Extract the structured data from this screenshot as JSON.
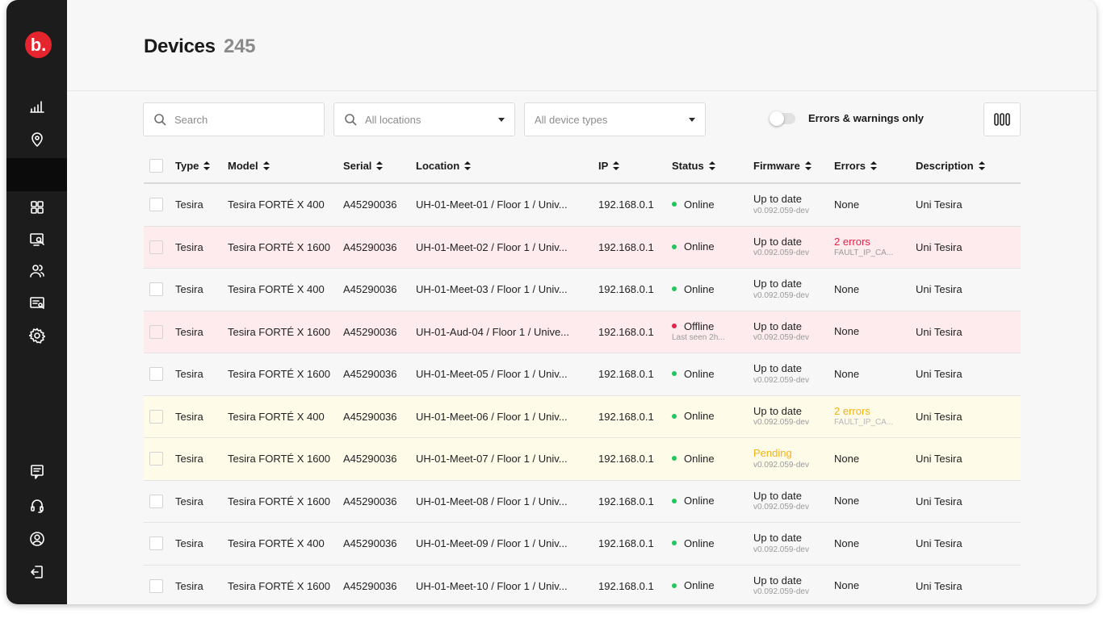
{
  "brand": {
    "logo_text": "b.",
    "accent": "#e5252d"
  },
  "sidebar": {
    "top_icons": [
      "analytics-icon",
      "location-pin-icon"
    ],
    "middle_icons": [
      "grid-icon",
      "monitor-search-icon",
      "users-icon",
      "ticket-icon",
      "settings-icon"
    ],
    "bottom_icons": [
      "feedback-icon",
      "support-headset-icon",
      "profile-icon",
      "logout-icon"
    ]
  },
  "header": {
    "title": "Devices",
    "count": "245"
  },
  "filters": {
    "search_placeholder": "Search",
    "locations_value": "All locations",
    "device_types_value": "All device types",
    "errors_toggle_label": "Errors & warnings only"
  },
  "table": {
    "columns": [
      "Type",
      "Model",
      "Serial",
      "Location",
      "IP",
      "Status",
      "Firmware",
      "Errors",
      "Description"
    ],
    "rows": [
      {
        "type": "Tesira",
        "model": "Tesira FORTÉ X 400",
        "serial": "A45290036",
        "location": "UH-01-Meet-01 / Floor 1 / Univ...",
        "ip": "192.168.0.1",
        "status": "Online",
        "status_sub": "",
        "firmware": "Up to date",
        "firmware_version": "v0.092.059-dev",
        "errors": "None",
        "errors_sub": "",
        "description": "Uni Tesira",
        "highlight": "none"
      },
      {
        "type": "Tesira",
        "model": "Tesira FORTÉ X 1600",
        "serial": "A45290036",
        "location": "UH-01-Meet-02 / Floor 1 / Univ...",
        "ip": "192.168.0.1",
        "status": "Online",
        "status_sub": "",
        "firmware": "Up to date",
        "firmware_version": "v0.092.059-dev",
        "errors": "2 errors",
        "errors_sub": "FAULT_IP_CA...",
        "description": "Uni Tesira",
        "highlight": "error"
      },
      {
        "type": "Tesira",
        "model": "Tesira FORTÉ X 400",
        "serial": "A45290036",
        "location": "UH-01-Meet-03 / Floor 1 / Univ...",
        "ip": "192.168.0.1",
        "status": "Online",
        "status_sub": "",
        "firmware": "Up to date",
        "firmware_version": "v0.092.059-dev",
        "errors": "None",
        "errors_sub": "",
        "description": "Uni Tesira",
        "highlight": "none"
      },
      {
        "type": "Tesira",
        "model": "Tesira FORTÉ X 1600",
        "serial": "A45290036",
        "location": "UH-01-Aud-04 / Floor 1 / Unive...",
        "ip": "192.168.0.1",
        "status": "Offline",
        "status_sub": "Last seen 2h...",
        "firmware": "Up to date",
        "firmware_version": "v0.092.059-dev",
        "errors": "None",
        "errors_sub": "",
        "description": "Uni Tesira",
        "highlight": "error"
      },
      {
        "type": "Tesira",
        "model": "Tesira FORTÉ X 1600",
        "serial": "A45290036",
        "location": "UH-01-Meet-05 / Floor 1 / Univ...",
        "ip": "192.168.0.1",
        "status": "Online",
        "status_sub": "",
        "firmware": "Up to date",
        "firmware_version": "v0.092.059-dev",
        "errors": "None",
        "errors_sub": "",
        "description": "Uni Tesira",
        "highlight": "none"
      },
      {
        "type": "Tesira",
        "model": "Tesira FORTÉ X 400",
        "serial": "A45290036",
        "location": "UH-01-Meet-06 / Floor 1 / Univ...",
        "ip": "192.168.0.1",
        "status": "Online",
        "status_sub": "",
        "firmware": "Up to date",
        "firmware_version": "v0.092.059-dev",
        "errors": "2 errors",
        "errors_sub": "FAULT_IP_CA...",
        "description": "Uni Tesira",
        "highlight": "warning"
      },
      {
        "type": "Tesira",
        "model": "Tesira FORTÉ X 1600",
        "serial": "A45290036",
        "location": "UH-01-Meet-07 / Floor 1 / Univ...",
        "ip": "192.168.0.1",
        "status": "Online",
        "status_sub": "",
        "firmware": "Pending",
        "firmware_version": "v0.092.059-dev",
        "errors": "None",
        "errors_sub": "",
        "description": "Uni Tesira",
        "highlight": "warning"
      },
      {
        "type": "Tesira",
        "model": "Tesira FORTÉ X 1600",
        "serial": "A45290036",
        "location": "UH-01-Meet-08 / Floor 1 / Univ...",
        "ip": "192.168.0.1",
        "status": "Online",
        "status_sub": "",
        "firmware": "Up to date",
        "firmware_version": "v0.092.059-dev",
        "errors": "None",
        "errors_sub": "",
        "description": "Uni Tesira",
        "highlight": "none"
      },
      {
        "type": "Tesira",
        "model": "Tesira FORTÉ X 400",
        "serial": "A45290036",
        "location": "UH-01-Meet-09 / Floor 1 / Univ...",
        "ip": "192.168.0.1",
        "status": "Online",
        "status_sub": "",
        "firmware": "Up to date",
        "firmware_version": "v0.092.059-dev",
        "errors": "None",
        "errors_sub": "",
        "description": "Uni Tesira",
        "highlight": "none"
      },
      {
        "type": "Tesira",
        "model": "Tesira FORTÉ X 1600",
        "serial": "A45290036",
        "location": "UH-01-Meet-10 / Floor 1 / Univ...",
        "ip": "192.168.0.1",
        "status": "Online",
        "status_sub": "",
        "firmware": "Up to date",
        "firmware_version": "v0.092.059-dev",
        "errors": "None",
        "errors_sub": "",
        "description": "Uni Tesira",
        "highlight": "none"
      }
    ]
  },
  "colors": {
    "online": "#22c55e",
    "offline": "#e0264a",
    "error_text": "#e0264a",
    "warning_text": "#f2b21b",
    "error_row": "#fdebee",
    "warning_row": "#fffbe9"
  }
}
